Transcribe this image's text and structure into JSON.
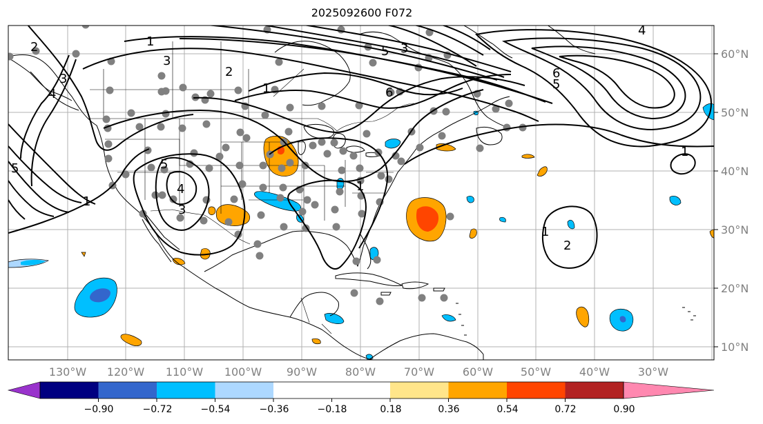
{
  "title": "2025092600 F072",
  "lon_labels": [
    "130°W",
    "120°W",
    "110°W",
    "100°W",
    "90°W",
    "80°W",
    "70°W",
    "60°W",
    "50°W",
    "40°W",
    "30°W"
  ],
  "lat_labels": [
    "60°N",
    "50°N",
    "40°N",
    "30°N",
    "20°N",
    "10°N"
  ],
  "colorbar": {
    "colors": [
      "#9933cc",
      "#000080",
      "#3366cc",
      "#00bfff",
      "#add8ff",
      "#ffffff",
      "#ffffff",
      "#ffe58a",
      "#ffa500",
      "#ff4500",
      "#b22222",
      "#ff88b0"
    ],
    "tick_labels": [
      "−0.90",
      "−0.72",
      "−0.54",
      "−0.36",
      "−0.18",
      "0.18",
      "0.36",
      "0.54",
      "0.72",
      "0.90"
    ]
  },
  "contour_labels": [
    "1",
    "3",
    "5",
    "4",
    "3",
    "2",
    "1",
    "6",
    "5",
    "3",
    "6",
    "5",
    "4",
    "1",
    "1",
    "5",
    "4",
    "3",
    "2",
    "1",
    "1",
    "2"
  ],
  "colors": {
    "positive_low": "#ffa500",
    "positive_high": "#ff4500",
    "negative_low": "#00bfff",
    "negative_high": "#3366cc",
    "station": "#808080",
    "grid": "#b0b0b0",
    "axis_label": "#808080"
  }
}
